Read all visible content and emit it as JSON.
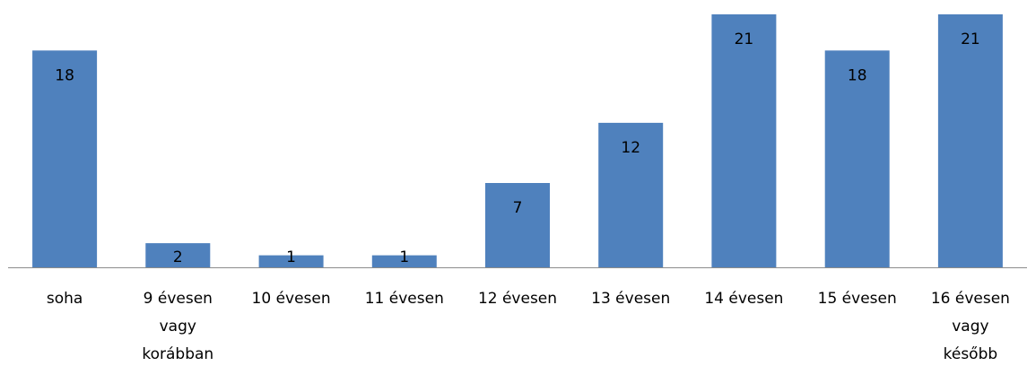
{
  "chart_data": {
    "type": "bar",
    "categories": [
      "soha",
      "9 évesen vagy korábban",
      "10 évesen",
      "11 évesen",
      "12 évesen",
      "13 évesen",
      "14 évesen",
      "15 évesen",
      "16 évesen vagy később"
    ],
    "category_lines": [
      [
        "soha"
      ],
      [
        "9 évesen",
        "vagy",
        "korábban"
      ],
      [
        "10 évesen"
      ],
      [
        "11 évesen"
      ],
      [
        "12 évesen"
      ],
      [
        "13 évesen"
      ],
      [
        "14 évesen"
      ],
      [
        "15 évesen"
      ],
      [
        "16 évesen",
        "vagy",
        "később"
      ]
    ],
    "values": [
      18,
      2,
      1,
      1,
      7,
      12,
      21,
      18,
      21
    ],
    "data_labels": [
      "18",
      "2",
      "1",
      "1",
      "7",
      "12",
      "21",
      "18",
      "21"
    ],
    "value_axis_visible": false,
    "ylim": [
      0,
      21
    ],
    "grid": false,
    "legend": "none",
    "bar_color": "#4f81bd",
    "axis_color": "#8c8c8c"
  }
}
